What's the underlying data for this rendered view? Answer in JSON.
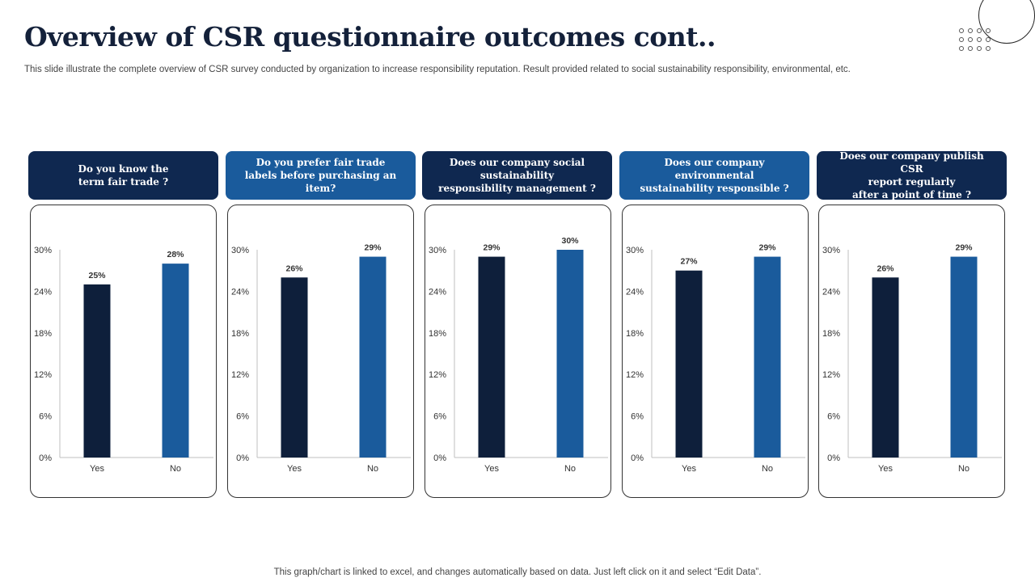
{
  "page": {
    "title": "Overview of CSR questionnaire outcomes cont..",
    "subtitle": "This slide illustrate  the complete overview of CSR survey conducted by organization to increase responsibility reputation.  Result provided related to social sustainability responsibility, environmental, etc.",
    "footer": "This graph/chart is linked to excel,  and changes automatically based on data. Just left click on it and select “Edit Data”."
  },
  "colors": {
    "yes_bar": "#0e1f3b",
    "no_bar": "#1a5b9c",
    "header_dark": "#0f2850",
    "header_blue": "#1a5b9c"
  },
  "questions": [
    {
      "label": "Do you know the\nterm fair trade ?"
    },
    {
      "label": "Do you prefer fair trade\nlabels before purchasing an item?"
    },
    {
      "label": "Does our company social\nsustainability\nresponsibility management ?"
    },
    {
      "label": "Does our company\nenvironmental\nsustainability responsible ?"
    },
    {
      "label": "Does our company publish CSR\nreport regularly\nafter a point of time ?"
    }
  ],
  "chart_data": [
    {
      "type": "bar",
      "categories": [
        "Yes",
        "No"
      ],
      "values": [
        25,
        28
      ],
      "data_labels": [
        "25%",
        "28%"
      ],
      "yticks": [
        "0%",
        "6%",
        "12%",
        "18%",
        "24%",
        "30%"
      ],
      "ylim": [
        0,
        30
      ],
      "grid": false
    },
    {
      "type": "bar",
      "categories": [
        "Yes",
        "No"
      ],
      "values": [
        26,
        29
      ],
      "data_labels": [
        "26%",
        "29%"
      ],
      "yticks": [
        "0%",
        "6%",
        "12%",
        "18%",
        "24%",
        "30%"
      ],
      "ylim": [
        0,
        30
      ],
      "grid": false
    },
    {
      "type": "bar",
      "categories": [
        "Yes",
        "No"
      ],
      "values": [
        29,
        30
      ],
      "data_labels": [
        "29%",
        "30%"
      ],
      "yticks": [
        "0%",
        "6%",
        "12%",
        "18%",
        "24%",
        "30%"
      ],
      "ylim": [
        0,
        30
      ],
      "grid": false
    },
    {
      "type": "bar",
      "categories": [
        "Yes",
        "No"
      ],
      "values": [
        27,
        29
      ],
      "data_labels": [
        "27%",
        "29%"
      ],
      "yticks": [
        "0%",
        "6%",
        "12%",
        "18%",
        "24%",
        "30%"
      ],
      "ylim": [
        0,
        30
      ],
      "grid": false
    },
    {
      "type": "bar",
      "categories": [
        "Yes",
        "No"
      ],
      "values": [
        26,
        29
      ],
      "data_labels": [
        "26%",
        "29%"
      ],
      "yticks": [
        "0%",
        "6%",
        "12%",
        "18%",
        "24%",
        "30%"
      ],
      "ylim": [
        0,
        30
      ],
      "grid": false
    }
  ]
}
